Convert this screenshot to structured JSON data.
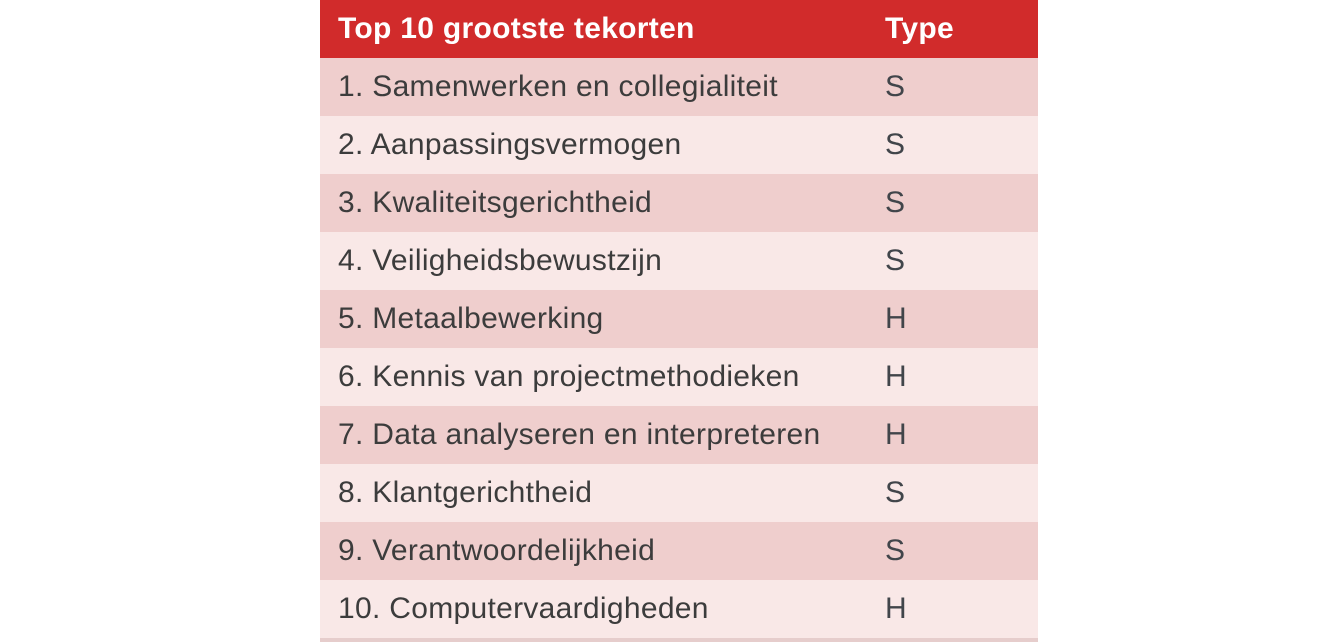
{
  "chart_data": {
    "type": "table",
    "title": "Top 10 grootste tekorten",
    "columns": [
      "Top 10 grootste tekorten",
      "Type"
    ],
    "rows": [
      [
        "1. Samenwerken en collegialiteit",
        "S"
      ],
      [
        "2. Aanpassingsvermogen",
        "S"
      ],
      [
        "3. Kwaliteitsgerichtheid",
        "S"
      ],
      [
        "4. Veiligheidsbewustzijn",
        "S"
      ],
      [
        "5. Metaalbewerking",
        "H"
      ],
      [
        "6. Kennis van projectmethodieken",
        "H"
      ],
      [
        "7. Data analyseren en interpreteren",
        "H"
      ],
      [
        "8. Klantgerichtheid",
        "S"
      ],
      [
        "9. Verantwoordelijkheid",
        "S"
      ],
      [
        "10. Computervaardigheden",
        "H"
      ]
    ],
    "layout": {
      "legend": "none",
      "grid": "off",
      "row_striping": "alternating, odd rows darker pink, even rows lighter pink"
    },
    "colors": {
      "header_bg": "#D12B2B",
      "header_text": "#FFFFFF",
      "row_dark": "#EFCECD",
      "row_light": "#F9E8E7",
      "body_text": "#3C3C3C"
    }
  }
}
